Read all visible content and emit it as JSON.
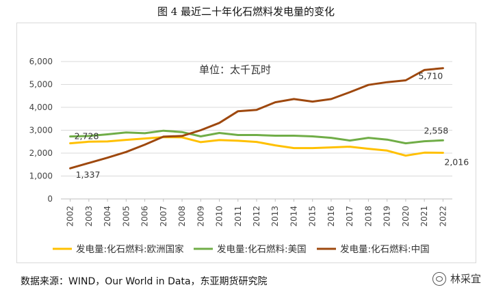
{
  "title": "图 4 最近二十年化石燃料发电量的变化",
  "source": "数据来源：WIND，Our World in Data，东亚期货研究院",
  "watermark": "林采宜",
  "chart_data": {
    "type": "line",
    "unit_annotation": "单位：太千瓦时",
    "categories": [
      "2002",
      "2003",
      "2004",
      "2005",
      "2006",
      "2007",
      "2008",
      "2009",
      "2010",
      "2011",
      "2012",
      "2013",
      "2014",
      "2015",
      "2016",
      "2017",
      "2018",
      "2019",
      "2020",
      "2021",
      "2022"
    ],
    "ylim": [
      0,
      6000
    ],
    "yticks": [
      0,
      1000,
      2000,
      3000,
      4000,
      5000,
      6000
    ],
    "ytick_labels": [
      "0",
      "1,000",
      "2,000",
      "3,000",
      "4,000",
      "5,000",
      "6,000"
    ],
    "grid": "horizontal",
    "legend": "bottom",
    "series": [
      {
        "name": "发电量:化石燃料:欧洲国家",
        "color": "#FFC000",
        "values": [
          2430,
          2500,
          2510,
          2580,
          2640,
          2700,
          2690,
          2480,
          2570,
          2540,
          2490,
          2340,
          2220,
          2220,
          2250,
          2280,
          2190,
          2110,
          1890,
          2020,
          2016
        ],
        "labels": [
          {
            "index": 20,
            "text": "2,016"
          }
        ]
      },
      {
        "name": "发电量:化石燃料:美国",
        "color": "#70AD47",
        "values": [
          2728,
          2750,
          2820,
          2900,
          2870,
          2980,
          2920,
          2730,
          2880,
          2790,
          2790,
          2760,
          2760,
          2730,
          2670,
          2550,
          2670,
          2590,
          2430,
          2520,
          2558
        ],
        "labels": [
          {
            "index": 0,
            "text": "2,728"
          },
          {
            "index": 20,
            "text": "2,558"
          }
        ]
      },
      {
        "name": "发电量:化石燃料:中国",
        "color": "#9E480E",
        "values": [
          1337,
          1570,
          1800,
          2050,
          2370,
          2720,
          2750,
          3000,
          3320,
          3830,
          3890,
          4220,
          4360,
          4250,
          4360,
          4660,
          4980,
          5100,
          5180,
          5630,
          5710
        ],
        "labels": [
          {
            "index": 0,
            "text": "1,337"
          },
          {
            "index": 20,
            "text": "5,710"
          }
        ]
      }
    ]
  }
}
